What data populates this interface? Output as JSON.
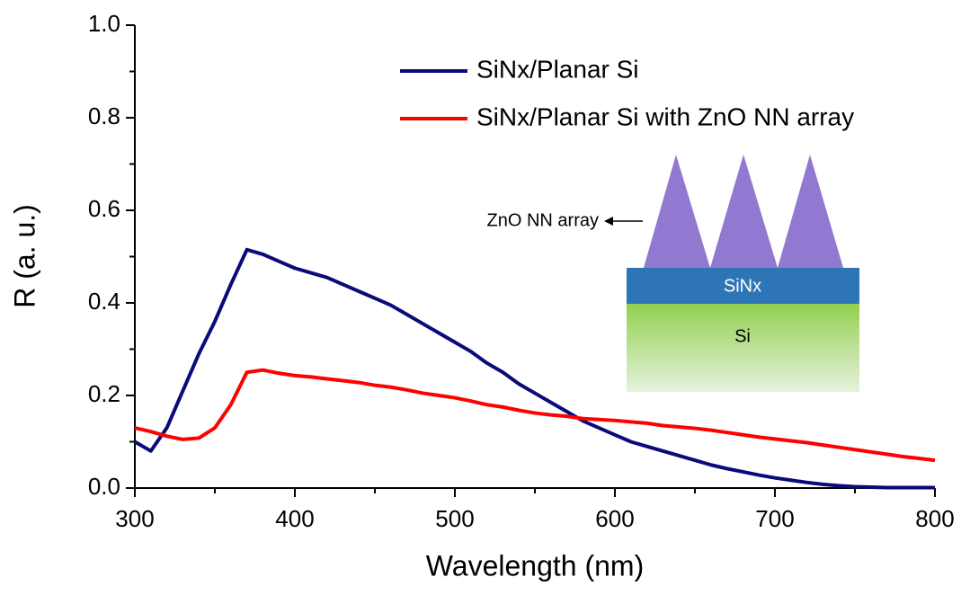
{
  "chart_data": {
    "type": "line",
    "x_label": "Wavelength (nm)",
    "y_label": "R (a. u.)",
    "xlim": [
      300,
      800
    ],
    "xticks": [
      300,
      400,
      500,
      600,
      700,
      800
    ],
    "ylim": [
      0,
      1
    ],
    "yticks": [
      {
        "value": 0,
        "label": "0.0"
      },
      0.2,
      0.4,
      0.6,
      0.8,
      {
        "value": 1,
        "label": "1.0"
      }
    ],
    "x": [
      300,
      310,
      320,
      330,
      340,
      350,
      360,
      370,
      380,
      390,
      400,
      410,
      420,
      430,
      440,
      450,
      460,
      470,
      480,
      490,
      500,
      510,
      520,
      530,
      540,
      550,
      560,
      570,
      580,
      590,
      600,
      610,
      620,
      630,
      640,
      650,
      660,
      670,
      680,
      690,
      700,
      710,
      720,
      730,
      740,
      750,
      760,
      770,
      780,
      790,
      800
    ],
    "series": [
      {
        "name": "SiNx/Planar Si",
        "color": "#0a0a7a",
        "values": [
          0.1,
          0.08,
          0.13,
          0.21,
          0.29,
          0.36,
          0.44,
          0.515,
          0.505,
          0.49,
          0.475,
          0.465,
          0.455,
          0.44,
          0.425,
          0.41,
          0.395,
          0.375,
          0.355,
          0.335,
          0.315,
          0.295,
          0.27,
          0.25,
          0.225,
          0.205,
          0.185,
          0.165,
          0.145,
          0.13,
          0.115,
          0.1,
          0.09,
          0.08,
          0.07,
          0.06,
          0.05,
          0.042,
          0.035,
          0.028,
          0.022,
          0.017,
          0.012,
          0.008,
          0.005,
          0.003,
          0.002,
          0.001,
          0.001,
          0.001,
          0.001
        ]
      },
      {
        "name": "SiNx/Planar Si with ZnO NN array",
        "color": "#ff0000",
        "values": [
          0.13,
          0.122,
          0.112,
          0.105,
          0.108,
          0.13,
          0.18,
          0.25,
          0.255,
          0.248,
          0.243,
          0.24,
          0.236,
          0.232,
          0.228,
          0.222,
          0.218,
          0.212,
          0.205,
          0.2,
          0.195,
          0.188,
          0.18,
          0.175,
          0.168,
          0.162,
          0.158,
          0.155,
          0.15,
          0.148,
          0.146,
          0.143,
          0.14,
          0.135,
          0.132,
          0.129,
          0.125,
          0.12,
          0.115,
          0.11,
          0.106,
          0.102,
          0.098,
          0.093,
          0.088,
          0.083,
          0.078,
          0.073,
          0.068,
          0.064,
          0.06
        ]
      }
    ],
    "inset": {
      "arrow_label": "ZnO NN array",
      "layer_top": "SiNx",
      "layer_bottom": "Si"
    }
  }
}
